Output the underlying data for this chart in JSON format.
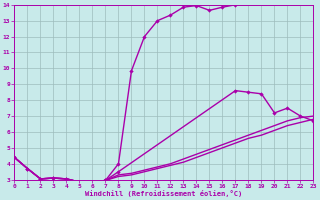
{
  "bg_color": "#c8eaea",
  "line_color": "#aa00aa",
  "grid_color": "#9dbdbd",
  "xlabel": "Windchill (Refroidissement éolien,°C)",
  "xlim": [
    0,
    23
  ],
  "ylim": [
    3,
    14
  ],
  "xticks": [
    0,
    1,
    2,
    3,
    4,
    5,
    6,
    7,
    8,
    9,
    10,
    11,
    12,
    13,
    14,
    15,
    16,
    17,
    18,
    19,
    20,
    21,
    22,
    23
  ],
  "yticks": [
    3,
    4,
    5,
    6,
    7,
    8,
    9,
    10,
    11,
    12,
    13,
    14
  ],
  "curve1_x": [
    0,
    1,
    2,
    3,
    4,
    5,
    6,
    7,
    8,
    9,
    10,
    11,
    12,
    13,
    14,
    15,
    16,
    17
  ],
  "curve1_y": [
    4.4,
    3.7,
    3.05,
    3.1,
    3.05,
    2.85,
    2.85,
    2.95,
    4.0,
    9.85,
    12.0,
    13.0,
    13.35,
    13.85,
    13.95,
    13.65,
    13.85,
    14.0
  ],
  "curve2_x": [
    0,
    1,
    2,
    3,
    4,
    5,
    6,
    7,
    8,
    17,
    18,
    19,
    20,
    21,
    22,
    23
  ],
  "curve2_y": [
    4.4,
    3.7,
    3.05,
    3.1,
    3.05,
    2.85,
    2.85,
    2.95,
    3.5,
    8.6,
    8.5,
    8.4,
    7.2,
    7.5,
    7.0,
    6.7
  ],
  "curve3_x": [
    0,
    1,
    2,
    3,
    4,
    5,
    6,
    7,
    8,
    9,
    10,
    11,
    12,
    13,
    14,
    15,
    16,
    17,
    18,
    19,
    20,
    21,
    22,
    23
  ],
  "curve3_y": [
    4.4,
    3.7,
    3.05,
    3.1,
    3.05,
    2.85,
    2.85,
    2.95,
    3.3,
    3.4,
    3.6,
    3.8,
    4.0,
    4.3,
    4.6,
    4.9,
    5.2,
    5.5,
    5.8,
    6.1,
    6.4,
    6.7,
    6.9,
    7.0
  ],
  "curve4_x": [
    0,
    1,
    2,
    3,
    4,
    5,
    6,
    7,
    8,
    9,
    10,
    11,
    12,
    13,
    14,
    15,
    16,
    17,
    18,
    19,
    20,
    21,
    22,
    23
  ],
  "curve4_y": [
    4.4,
    3.7,
    3.05,
    3.1,
    3.05,
    2.85,
    2.85,
    2.95,
    3.2,
    3.3,
    3.5,
    3.7,
    3.9,
    4.1,
    4.4,
    4.7,
    5.0,
    5.3,
    5.6,
    5.8,
    6.1,
    6.4,
    6.6,
    6.8
  ]
}
